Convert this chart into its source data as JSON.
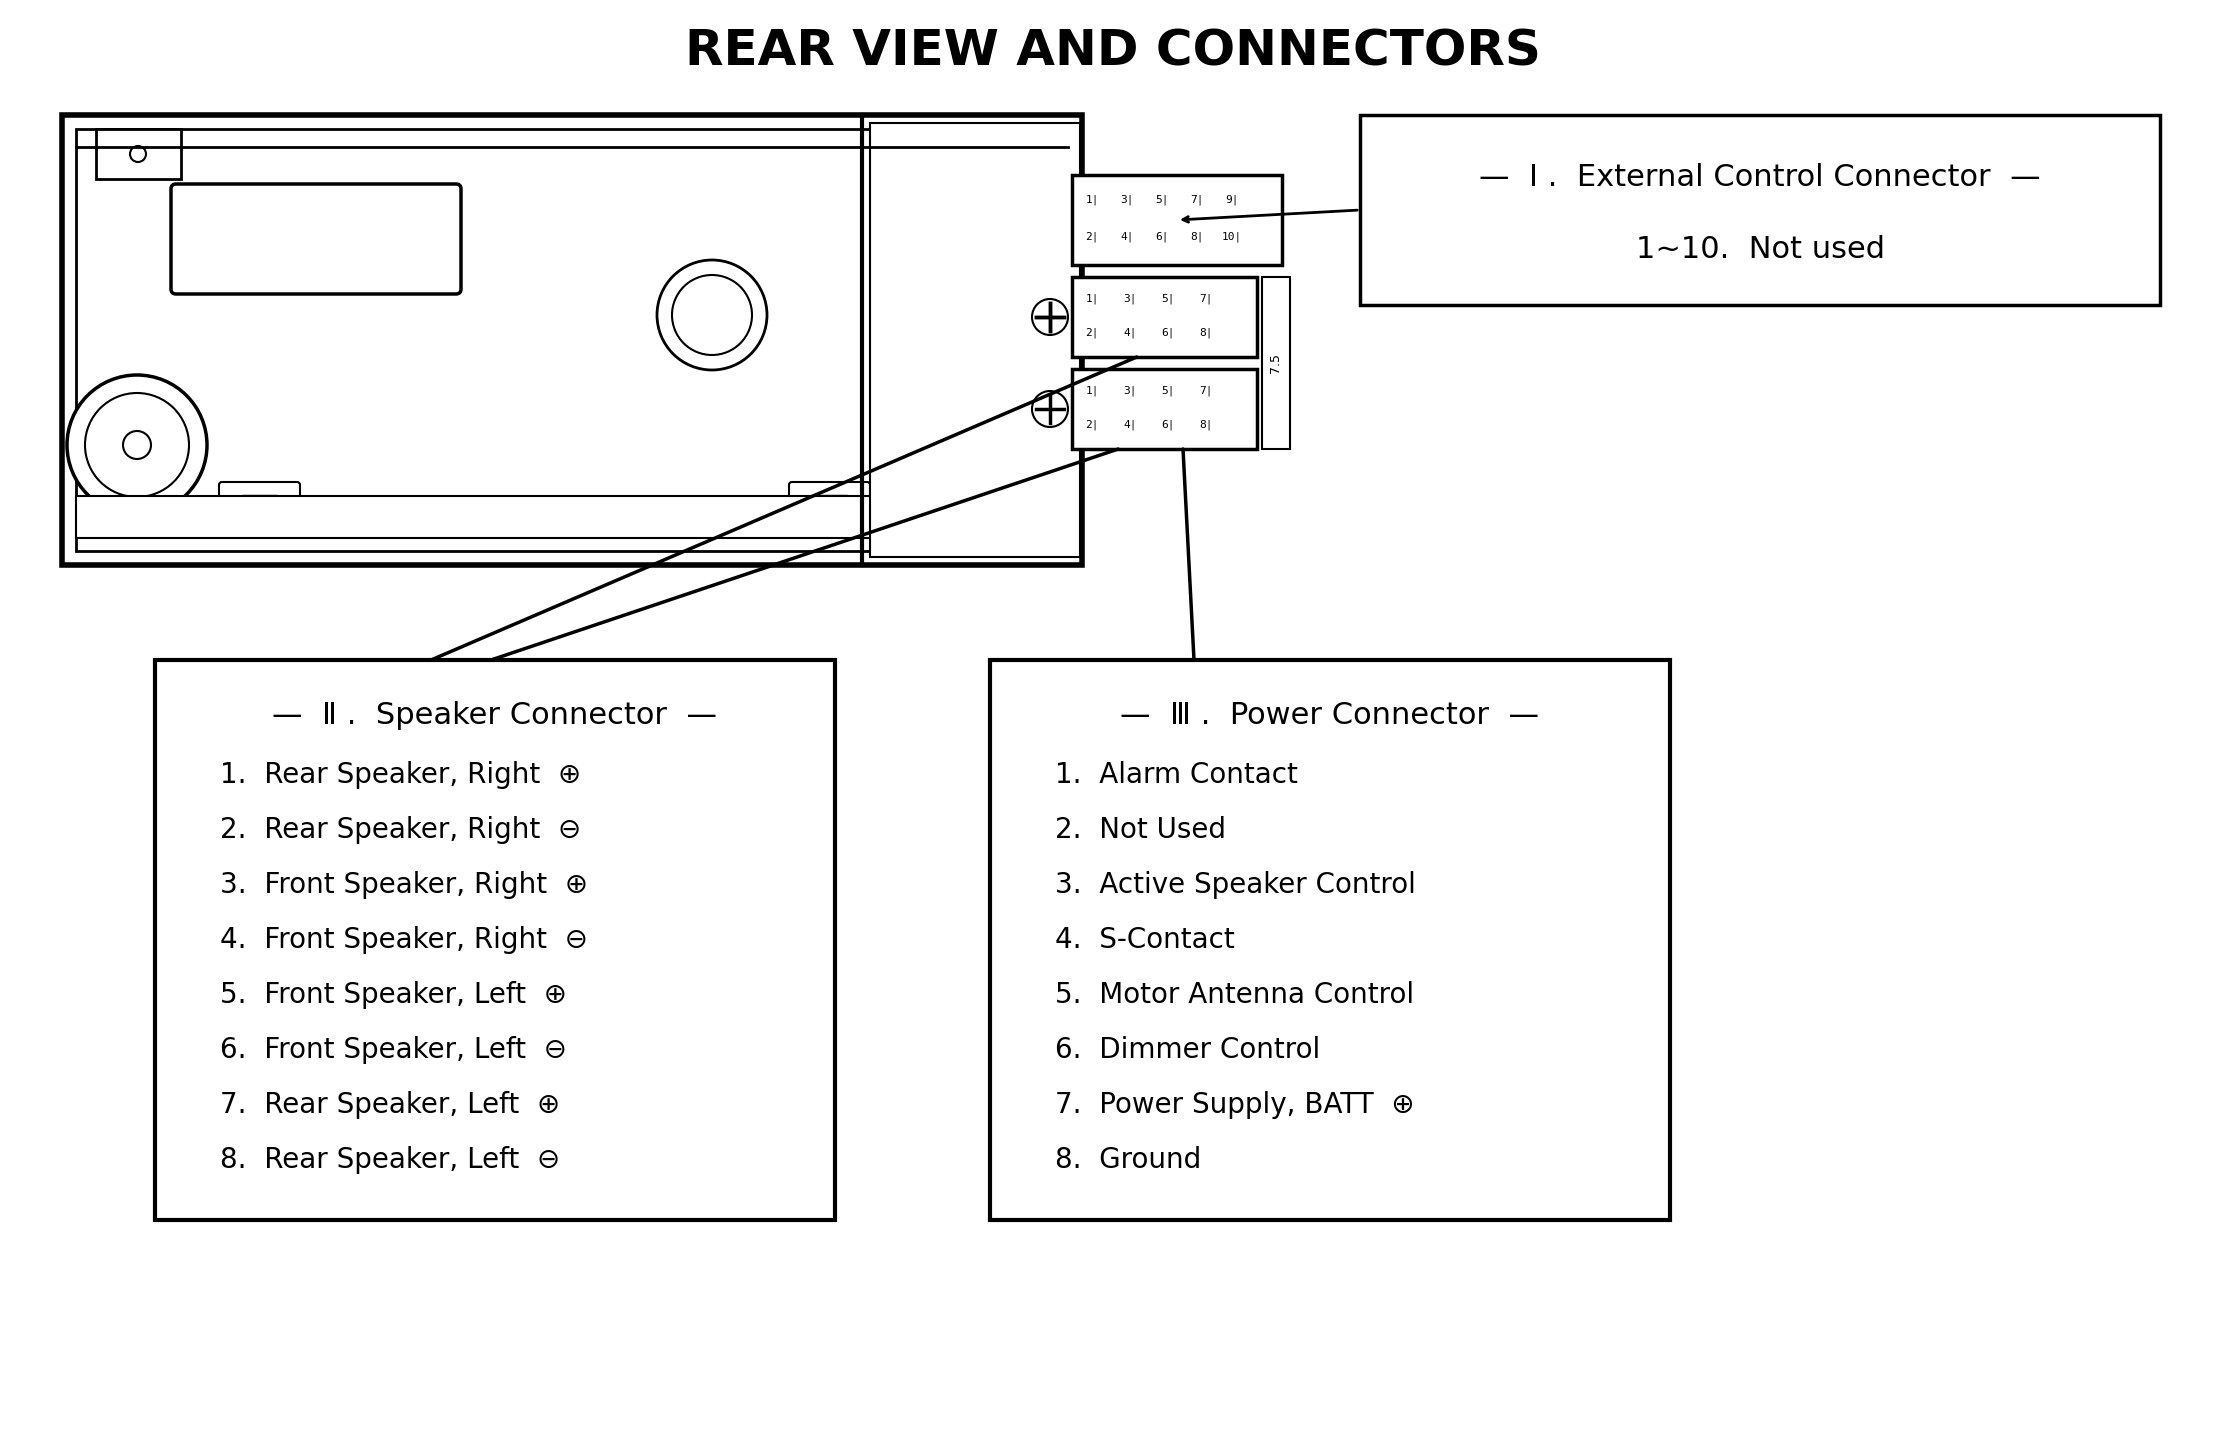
{
  "title": "REAR VIEW AND CONNECTORS",
  "bg_color": "#ffffff",
  "text_color": "#000000",
  "connector_I": {
    "label": "—  I .  External Control Connector  —",
    "sublabel": "1~10.  Not used"
  },
  "connector_II": {
    "label": "—  Ⅱ .  Speaker Connector  —",
    "items": [
      "1.  Rear Speaker, Right  ⊕",
      "2.  Rear Speaker, Right  ⊖",
      "3.  Front Speaker, Right  ⊕",
      "4.  Front Speaker, Right  ⊖",
      "5.  Front Speaker, Left  ⊕",
      "6.  Front Speaker, Left  ⊖",
      "7.  Rear Speaker, Left  ⊕",
      "8.  Rear Speaker, Left  ⊖"
    ]
  },
  "connector_III": {
    "label": "—  Ⅲ .  Power Connector  —",
    "items": [
      "1.  Alarm Contact",
      "2.  Not Used",
      "3.  Active Speaker Control",
      "4.  S-Contact",
      "5.  Motor Antenna Control",
      "6.  Dimmer Control",
      "7.  Power Supply, BATT  ⊕",
      "8.  Ground"
    ]
  }
}
